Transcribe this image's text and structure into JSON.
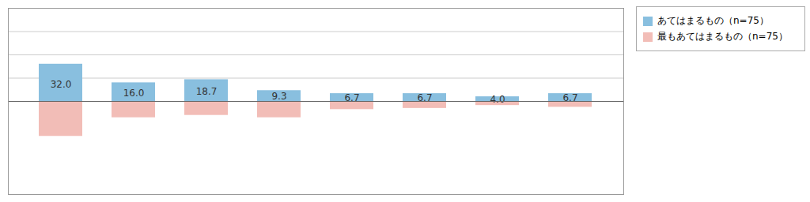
{
  "chart_data": {
    "type": "bar",
    "categories": [
      null,
      null,
      null,
      null,
      null,
      null,
      null,
      null
    ],
    "series": [
      {
        "name": "あてはまるもの（n=75）",
        "color": "#89bfdf",
        "values": [
          32.0,
          16.0,
          18.7,
          9.3,
          6.7,
          6.7,
          4.0,
          6.7
        ],
        "value_labels": [
          "32.0",
          "16.0",
          "18.7",
          "9.3",
          "6.7",
          "6.7",
          "4.0",
          "6.7"
        ],
        "data_labels": true
      },
      {
        "name": "最もあてはまるもの（n=75）",
        "color": "#f2bdb7",
        "values": [
          -30.0,
          -14.0,
          -12.0,
          -14.0,
          -7.0,
          -6.0,
          -3.5,
          -5.0
        ],
        "data_labels": false
      }
    ],
    "ylim": [
      -80,
      80
    ],
    "yticks": [
      20,
      40,
      60,
      80
    ],
    "grid": true,
    "legend": "upper right",
    "tick_labels": false
  }
}
